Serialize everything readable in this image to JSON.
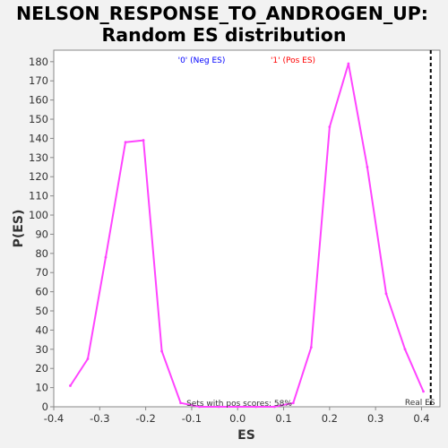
{
  "chart_data": {
    "type": "line",
    "title": "NELSON_RESPONSE_TO_ANDROGEN_UP:",
    "subtitle": "Random ES distribution",
    "xlabel": "ES",
    "ylabel": "P(ES)",
    "xlim": [
      -0.4,
      0.44
    ],
    "ylim": [
      0,
      186
    ],
    "xticks": [
      -0.4,
      -0.3,
      -0.2,
      -0.1,
      0.0,
      0.1,
      0.2,
      0.3,
      0.4
    ],
    "xtick_labels": [
      "-0.4",
      "-0.3",
      "-0.2",
      "-0.1",
      "0.0",
      "0.1",
      "0.2",
      "0.3",
      "0.4"
    ],
    "yticks": [
      0,
      10,
      20,
      30,
      40,
      50,
      60,
      70,
      80,
      90,
      100,
      110,
      120,
      130,
      140,
      150,
      160,
      170,
      180
    ],
    "ytick_labels": [
      "0",
      "10",
      "20",
      "30",
      "40",
      "50",
      "60",
      "70",
      "80",
      "90",
      "100",
      "110",
      "120",
      "130",
      "140",
      "150",
      "160",
      "170",
      "180"
    ],
    "grid": false,
    "series": [
      {
        "color": "#ff44ff",
        "points": [
          {
            "x": -0.364,
            "y": 11
          },
          {
            "x": -0.326,
            "y": 25
          },
          {
            "x": -0.287,
            "y": 78
          },
          {
            "x": -0.244,
            "y": 138
          },
          {
            "x": -0.205,
            "y": 139
          },
          {
            "x": -0.165,
            "y": 29
          },
          {
            "x": -0.124,
            "y": 2
          },
          {
            "x": -0.083,
            "y": 0
          },
          {
            "x": -0.041,
            "y": 0
          },
          {
            "x": 0.0,
            "y": 0
          },
          {
            "x": 0.04,
            "y": 0
          },
          {
            "x": 0.08,
            "y": 0
          },
          {
            "x": 0.121,
            "y": 2
          },
          {
            "x": 0.16,
            "y": 31
          },
          {
            "x": 0.2,
            "y": 146
          },
          {
            "x": 0.241,
            "y": 179
          },
          {
            "x": 0.282,
            "y": 125
          },
          {
            "x": 0.323,
            "y": 59
          },
          {
            "x": 0.364,
            "y": 30
          },
          {
            "x": 0.404,
            "y": 8
          }
        ]
      }
    ],
    "real_es": {
      "x": 0.42,
      "label": "Real ES"
    },
    "legend": [
      {
        "label": "'0' (Neg ES)",
        "color": "#0000ff"
      },
      {
        "label": "'1' (Pos ES)",
        "color": "#ff0000"
      }
    ],
    "annotation": "Sets with pos scores: 58%"
  }
}
